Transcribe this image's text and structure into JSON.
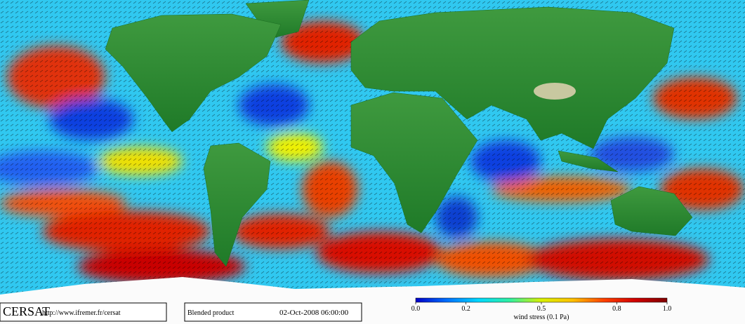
{
  "logo": "CERSAT",
  "url": "http://www.ifremer.fr/cersat",
  "product": "Blended product",
  "timestamp": "02-Oct-2008 06:00:00",
  "colorbar": {
    "label": "wind stress (0.1 Pa)",
    "lim": [
      0,
      1
    ],
    "ticks": [
      {
        "value": 0,
        "label": "0.0"
      },
      0.2,
      0.5,
      0.8,
      {
        "value": 1,
        "label": "1.0"
      }
    ],
    "colors": [
      "#0000c8",
      "#0070ff",
      "#00d8ff",
      "#30f0a0",
      "#d8f000",
      "#ffc000",
      "#ff4000",
      "#d00000",
      "#800000"
    ]
  }
}
